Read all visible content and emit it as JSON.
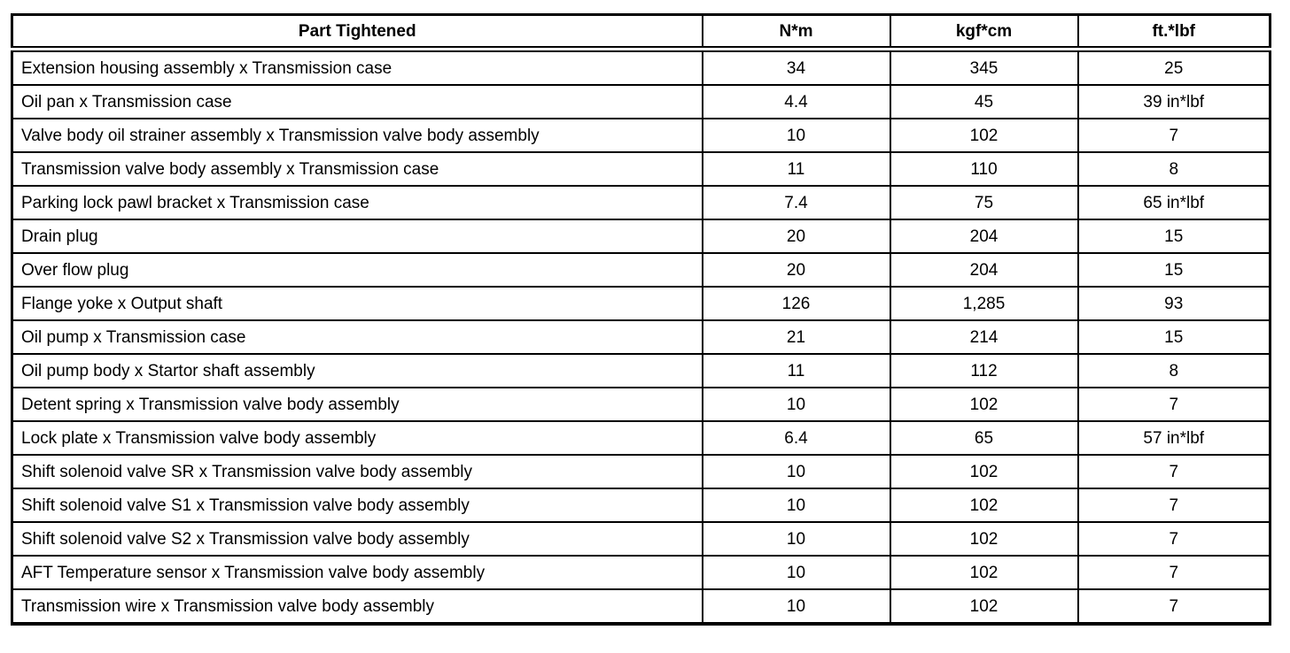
{
  "table": {
    "columns": [
      {
        "label": "Part Tightened"
      },
      {
        "label": "N*m"
      },
      {
        "label": "kgf*cm"
      },
      {
        "label": "ft.*lbf"
      }
    ],
    "rows": [
      {
        "part": "Extension housing assembly x Transmission case",
        "nm": "34",
        "kgfcm": "345",
        "ftlbf": "25"
      },
      {
        "part": "Oil pan x Transmission case",
        "nm": "4.4",
        "kgfcm": "45",
        "ftlbf": "39 in*lbf"
      },
      {
        "part": "Valve body oil strainer assembly x Transmission valve body assembly",
        "nm": "10",
        "kgfcm": "102",
        "ftlbf": "7"
      },
      {
        "part": "Transmission valve body assembly x Transmission case",
        "nm": "11",
        "kgfcm": "110",
        "ftlbf": "8"
      },
      {
        "part": "Parking lock pawl bracket x Transmission case",
        "nm": "7.4",
        "kgfcm": "75",
        "ftlbf": "65 in*lbf"
      },
      {
        "part": "Drain plug",
        "nm": "20",
        "kgfcm": "204",
        "ftlbf": "15"
      },
      {
        "part": "Over flow plug",
        "nm": "20",
        "kgfcm": "204",
        "ftlbf": "15"
      },
      {
        "part": "Flange yoke x Output shaft",
        "nm": "126",
        "kgfcm": "1,285",
        "ftlbf": "93"
      },
      {
        "part": "Oil pump x Transmission case",
        "nm": "21",
        "kgfcm": "214",
        "ftlbf": "15"
      },
      {
        "part": "Oil pump body x Startor shaft assembly",
        "nm": "11",
        "kgfcm": "112",
        "ftlbf": "8"
      },
      {
        "part": "Detent spring x Transmission valve body assembly",
        "nm": "10",
        "kgfcm": "102",
        "ftlbf": "7"
      },
      {
        "part": "Lock plate x Transmission valve body assembly",
        "nm": "6.4",
        "kgfcm": "65",
        "ftlbf": "57 in*lbf"
      },
      {
        "part": "Shift solenoid valve SR x Transmission valve body assembly",
        "nm": "10",
        "kgfcm": "102",
        "ftlbf": "7"
      },
      {
        "part": "Shift solenoid valve S1 x Transmission valve body assembly",
        "nm": "10",
        "kgfcm": "102",
        "ftlbf": "7"
      },
      {
        "part": "Shift solenoid valve S2 x Transmission valve body assembly",
        "nm": "10",
        "kgfcm": "102",
        "ftlbf": "7"
      },
      {
        "part": "AFT Temperature sensor x Transmission valve body assembly",
        "nm": "10",
        "kgfcm": "102",
        "ftlbf": "7"
      },
      {
        "part": "Transmission wire x Transmission valve body assembly",
        "nm": "10",
        "kgfcm": "102",
        "ftlbf": "7"
      }
    ]
  },
  "colors": {
    "border": "#000000",
    "text": "#000000",
    "background": "#ffffff"
  }
}
